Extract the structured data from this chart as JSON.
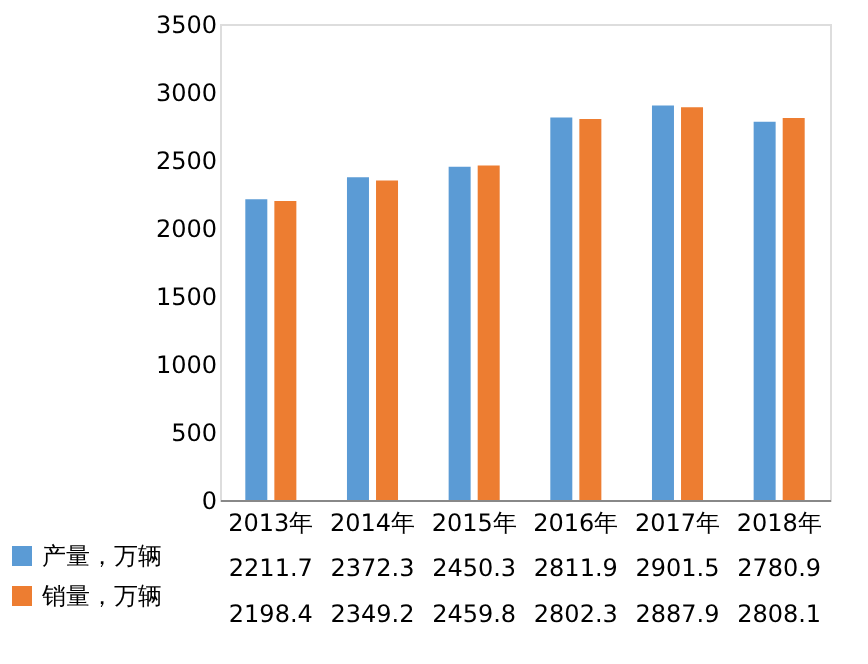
{
  "chart_data": {
    "type": "bar",
    "categories": [
      "2013年",
      "2014年",
      "2015年",
      "2016年",
      "2017年",
      "2018年"
    ],
    "series": [
      {
        "name": "产量，万辆",
        "color": "#5b9bd5",
        "values": [
          2211.7,
          2372.3,
          2450.3,
          2811.9,
          2901.5,
          2780.9
        ]
      },
      {
        "name": "销量，万辆",
        "color": "#ed7d31",
        "values": [
          2198.4,
          2349.2,
          2459.8,
          2802.3,
          2887.9,
          2808.1
        ]
      }
    ],
    "ylim": [
      0,
      3500
    ],
    "yticks": [
      0,
      500,
      1000,
      1500,
      2000,
      2500,
      3000,
      3500
    ],
    "grid": false,
    "legend": "bottom",
    "data_labels": true
  }
}
